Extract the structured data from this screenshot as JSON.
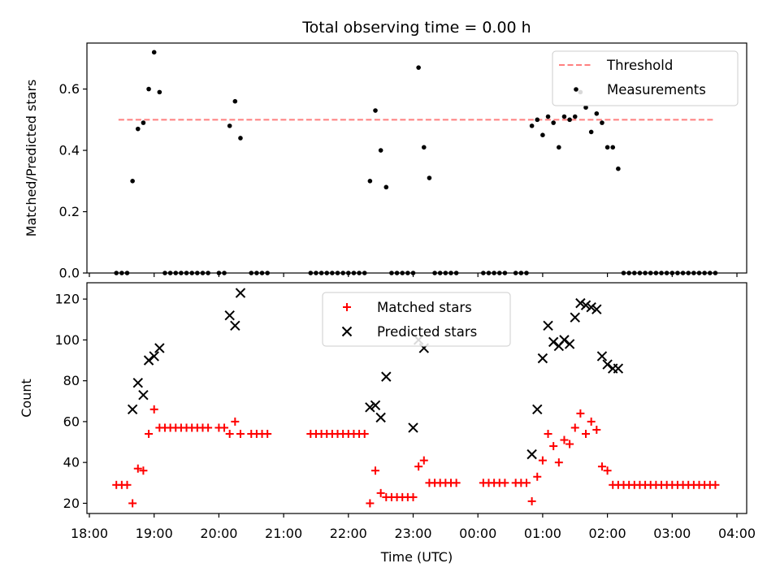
{
  "title": "Total observing time = 0.00 h",
  "colors": {
    "measurement": "#000000",
    "threshold": "#ff7f7f",
    "matched": "#ff0000",
    "predicted": "#000000"
  },
  "chart_data": [
    {
      "type": "scatter",
      "ylabel": "Matched/Predicted stars",
      "xlabel": "",
      "ylim": [
        0,
        0.75
      ],
      "yticks": [
        "0.0",
        "0.2",
        "0.4",
        "0.6"
      ],
      "legend_position": "top-right",
      "legend": [
        "Threshold",
        "Measurements"
      ],
      "threshold": {
        "name": "Threshold",
        "value": 0.5,
        "x_start": "18:27",
        "x_end": "03:40",
        "style": "dashed"
      },
      "series": [
        {
          "name": "Measurements",
          "x": [
            "18:25",
            "18:30",
            "18:35",
            "18:40",
            "18:45",
            "18:50",
            "18:55",
            "19:00",
            "19:05",
            "19:10",
            "19:15",
            "19:20",
            "19:25",
            "19:30",
            "19:35",
            "19:40",
            "19:45",
            "19:50",
            "20:00",
            "20:05",
            "20:10",
            "20:15",
            "20:20",
            "20:30",
            "20:35",
            "20:40",
            "20:45",
            "21:25",
            "21:30",
            "21:35",
            "21:40",
            "21:45",
            "21:50",
            "21:55",
            "22:00",
            "22:05",
            "22:10",
            "22:15",
            "22:20",
            "22:25",
            "22:30",
            "22:35",
            "22:40",
            "22:45",
            "22:50",
            "22:55",
            "23:00",
            "23:05",
            "23:10",
            "23:15",
            "23:20",
            "23:25",
            "23:30",
            "23:35",
            "23:40",
            "00:05",
            "00:10",
            "00:15",
            "00:20",
            "00:25",
            "00:35",
            "00:40",
            "00:45",
            "00:50",
            "00:55",
            "01:00",
            "01:05",
            "01:10",
            "01:15",
            "01:20",
            "01:25",
            "01:30",
            "01:35",
            "01:40",
            "01:45",
            "01:50",
            "01:55",
            "02:00",
            "02:05",
            "02:10",
            "02:15",
            "02:20",
            "02:25",
            "02:30",
            "02:35",
            "02:40",
            "02:45",
            "02:50",
            "02:55",
            "03:00",
            "03:05",
            "03:10",
            "03:15",
            "03:20",
            "03:25",
            "03:30",
            "03:35",
            "03:40"
          ],
          "y": [
            0,
            0,
            0,
            0.3,
            0.47,
            0.49,
            0.6,
            0.72,
            0.59,
            0,
            0,
            0,
            0,
            0,
            0,
            0,
            0,
            0,
            0,
            0,
            0.48,
            0.56,
            0.44,
            0,
            0,
            0,
            0,
            0,
            0,
            0,
            0,
            0,
            0,
            0,
            0,
            0,
            0,
            0,
            0.3,
            0.53,
            0.4,
            0.28,
            0,
            0,
            0,
            0,
            0,
            0.67,
            0.41,
            0.31,
            0,
            0,
            0,
            0,
            0,
            0,
            0,
            0,
            0,
            0,
            0,
            0,
            0,
            0.48,
            0.5,
            0.45,
            0.51,
            0.49,
            0.41,
            0.51,
            0.5,
            0.51,
            0.59,
            0.54,
            0.46,
            0.52,
            0.49,
            0.41,
            0.41,
            0.34,
            0,
            0,
            0,
            0,
            0,
            0,
            0,
            0,
            0,
            0,
            0,
            0,
            0,
            0,
            0,
            0,
            0,
            0
          ]
        }
      ]
    },
    {
      "type": "scatter",
      "ylabel": "Count",
      "xlabel": "Time (UTC)",
      "ylim": [
        15,
        128
      ],
      "yticks": [
        "20",
        "40",
        "60",
        "80",
        "100",
        "120"
      ],
      "xticks": [
        "18:00",
        "19:00",
        "20:00",
        "21:00",
        "22:00",
        "23:00",
        "00:00",
        "01:00",
        "02:00",
        "03:00",
        "04:00"
      ],
      "legend_position": "upper-center",
      "legend": [
        "Matched stars",
        "Predicted stars"
      ],
      "series": [
        {
          "name": "Matched stars",
          "x": [
            "18:25",
            "18:30",
            "18:35",
            "18:40",
            "18:45",
            "18:50",
            "18:55",
            "19:00",
            "19:05",
            "19:10",
            "19:15",
            "19:20",
            "19:25",
            "19:30",
            "19:35",
            "19:40",
            "19:45",
            "19:50",
            "20:00",
            "20:05",
            "20:10",
            "20:15",
            "20:20",
            "20:30",
            "20:35",
            "20:40",
            "20:45",
            "21:25",
            "21:30",
            "21:35",
            "21:40",
            "21:45",
            "21:50",
            "21:55",
            "22:00",
            "22:05",
            "22:10",
            "22:15",
            "22:20",
            "22:25",
            "22:30",
            "22:35",
            "22:40",
            "22:45",
            "22:50",
            "22:55",
            "23:00",
            "23:05",
            "23:10",
            "23:15",
            "23:20",
            "23:25",
            "23:30",
            "23:35",
            "23:40",
            "00:05",
            "00:10",
            "00:15",
            "00:20",
            "00:25",
            "00:35",
            "00:40",
            "00:45",
            "00:50",
            "00:55",
            "01:00",
            "01:05",
            "01:10",
            "01:15",
            "01:20",
            "01:25",
            "01:30",
            "01:35",
            "01:40",
            "01:45",
            "01:50",
            "01:55",
            "02:00",
            "02:05",
            "02:10",
            "02:15",
            "02:20",
            "02:25",
            "02:30",
            "02:35",
            "02:40",
            "02:45",
            "02:50",
            "02:55",
            "03:00",
            "03:05",
            "03:10",
            "03:15",
            "03:20",
            "03:25",
            "03:30",
            "03:35",
            "03:40"
          ],
          "y": [
            29,
            29,
            29,
            20,
            37,
            36,
            54,
            66,
            57,
            57,
            57,
            57,
            57,
            57,
            57,
            57,
            57,
            57,
            57,
            57,
            54,
            60,
            54,
            54,
            54,
            54,
            54,
            54,
            54,
            54,
            54,
            54,
            54,
            54,
            54,
            54,
            54,
            54,
            20,
            36,
            25,
            23,
            23,
            23,
            23,
            23,
            23,
            38,
            41,
            30,
            30,
            30,
            30,
            30,
            30,
            30,
            30,
            30,
            30,
            30,
            30,
            30,
            30,
            21,
            33,
            41,
            54,
            48,
            40,
            51,
            49,
            57,
            64,
            54,
            60,
            56,
            38,
            36,
            29,
            29,
            29,
            29,
            29,
            29,
            29,
            29,
            29,
            29,
            29,
            29,
            29,
            29,
            29,
            29,
            29,
            29,
            29,
            29
          ]
        },
        {
          "name": "Predicted stars",
          "x": [
            "18:40",
            "18:45",
            "18:50",
            "18:55",
            "19:00",
            "19:05",
            "20:10",
            "20:15",
            "20:20",
            "22:20",
            "22:25",
            "22:30",
            "22:35",
            "23:00",
            "23:05",
            "23:10",
            "00:50",
            "00:55",
            "01:00",
            "01:05",
            "01:10",
            "01:15",
            "01:20",
            "01:25",
            "01:30",
            "01:35",
            "01:40",
            "01:45",
            "01:50",
            "01:55",
            "02:00",
            "02:05",
            "02:10"
          ],
          "y": [
            66,
            79,
            73,
            90,
            92,
            96,
            112,
            107,
            123,
            67,
            68,
            62,
            82,
            57,
            100,
            96,
            44,
            66,
            91,
            107,
            99,
            97,
            100,
            98,
            111,
            118,
            117,
            116,
            115,
            92,
            88,
            86,
            86
          ]
        }
      ]
    }
  ]
}
